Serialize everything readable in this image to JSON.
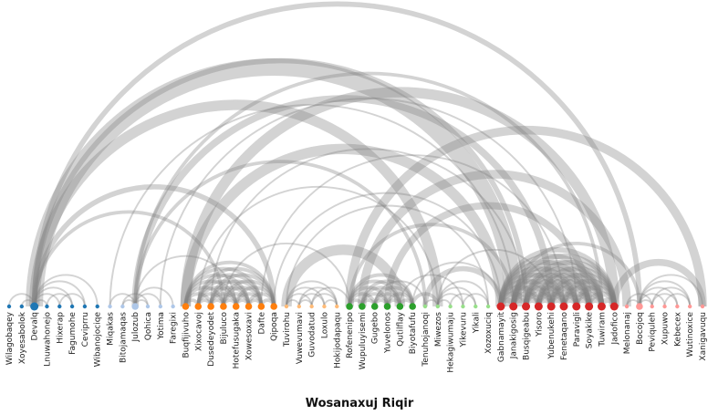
{
  "title": "Wosanaxuj Riqir",
  "colors": {
    "link": "#808080",
    "groups": [
      "#1f77b4",
      "#aec7e8",
      "#ff7f0e",
      "#ffbb78",
      "#2ca02c",
      "#98df8a",
      "#d62728",
      "#ff9896"
    ]
  },
  "nodes": [
    {
      "name": "Wilagobaqey",
      "group": 0,
      "size": 1
    },
    {
      "name": "Xoyesabolok",
      "group": 0,
      "size": 1
    },
    {
      "name": "Devalq",
      "group": 0,
      "size": 3
    },
    {
      "name": "Lnuwahonejo",
      "group": 0,
      "size": 1
    },
    {
      "name": "Hixerap",
      "group": 0,
      "size": 1
    },
    {
      "name": "Fagumohe",
      "group": 0,
      "size": 1
    },
    {
      "name": "Ceviprru",
      "group": 0,
      "size": 1
    },
    {
      "name": "Wibanojociqe",
      "group": 0,
      "size": 1
    },
    {
      "name": "Miqakas",
      "group": 1,
      "size": 1
    },
    {
      "name": "Bitojamaqas",
      "group": 1,
      "size": 1
    },
    {
      "name": "Julozub",
      "group": 1,
      "size": 2
    },
    {
      "name": "Qohica",
      "group": 1,
      "size": 1
    },
    {
      "name": "Yotima",
      "group": 1,
      "size": 1
    },
    {
      "name": "Faregixi",
      "group": 1,
      "size": 1
    },
    {
      "name": "Buqfijivuho",
      "group": 2,
      "size": 2
    },
    {
      "name": "Xixocavoj",
      "group": 2,
      "size": 2
    },
    {
      "name": "Dusedeyodet",
      "group": 2,
      "size": 2
    },
    {
      "name": "Bijuluco",
      "group": 2,
      "size": 2
    },
    {
      "name": "Hotefusugaka",
      "group": 2,
      "size": 2
    },
    {
      "name": "Xowesoxavi",
      "group": 2,
      "size": 2
    },
    {
      "name": "Dafte",
      "group": 2,
      "size": 2
    },
    {
      "name": "Qipoqa",
      "group": 2,
      "size": 2
    },
    {
      "name": "Tuvirohu",
      "group": 3,
      "size": 1
    },
    {
      "name": "Vuwevumavi",
      "group": 3,
      "size": 1
    },
    {
      "name": "Guvodatud",
      "group": 3,
      "size": 1
    },
    {
      "name": "Loxulo",
      "group": 3,
      "size": 1
    },
    {
      "name": "Hokijodapaqu",
      "group": 3,
      "size": 1
    },
    {
      "name": "Rofenenipo",
      "group": 4,
      "size": 2
    },
    {
      "name": "Wupuluyisemi",
      "group": 4,
      "size": 2
    },
    {
      "name": "Gugebo",
      "group": 4,
      "size": 2
    },
    {
      "name": "Yuvelonos",
      "group": 4,
      "size": 2
    },
    {
      "name": "Qutilflay",
      "group": 4,
      "size": 2
    },
    {
      "name": "Biyotafufu",
      "group": 4,
      "size": 2
    },
    {
      "name": "Tenuhojanoqi",
      "group": 5,
      "size": 1
    },
    {
      "name": "Miwezos",
      "group": 5,
      "size": 1
    },
    {
      "name": "Hekagiwumaju",
      "group": 5,
      "size": 1
    },
    {
      "name": "Yikevuru",
      "group": 5,
      "size": 1
    },
    {
      "name": "Yikali",
      "group": 5,
      "size": 1
    },
    {
      "name": "Xozoxuciq",
      "group": 5,
      "size": 1
    },
    {
      "name": "Gabnamayit",
      "group": 6,
      "size": 3
    },
    {
      "name": "Janakigosig",
      "group": 6,
      "size": 3
    },
    {
      "name": "Busqigeabu",
      "group": 6,
      "size": 3
    },
    {
      "name": "Yisoro",
      "group": 6,
      "size": 3
    },
    {
      "name": "Yubenukehi",
      "group": 6,
      "size": 3
    },
    {
      "name": "Fenetaqano",
      "group": 6,
      "size": 3
    },
    {
      "name": "Paravigli",
      "group": 6,
      "size": 3
    },
    {
      "name": "Soyakike",
      "group": 6,
      "size": 3
    },
    {
      "name": "Tuwiram",
      "group": 6,
      "size": 3
    },
    {
      "name": "Jadofico",
      "group": 6,
      "size": 3
    },
    {
      "name": "Melonanaj",
      "group": 7,
      "size": 1
    },
    {
      "name": "Bocojoq",
      "group": 7,
      "size": 2
    },
    {
      "name": "Peviquleh",
      "group": 7,
      "size": 1
    },
    {
      "name": "Xupuwo",
      "group": 7,
      "size": 1
    },
    {
      "name": "Kebecex",
      "group": 7,
      "size": 1
    },
    {
      "name": "Wutinoxice",
      "group": 7,
      "size": 1
    },
    {
      "name": "Xanigavuqu",
      "group": 7,
      "size": 1
    }
  ],
  "links": [
    [
      2,
      0,
      1
    ],
    [
      2,
      1,
      1
    ],
    [
      2,
      3,
      1
    ],
    [
      2,
      4,
      1
    ],
    [
      2,
      5,
      1
    ],
    [
      2,
      6,
      1
    ],
    [
      2,
      7,
      1
    ],
    [
      4,
      6,
      1
    ],
    [
      3,
      5,
      1
    ],
    [
      2,
      40,
      10
    ],
    [
      2,
      34,
      6
    ],
    [
      2,
      41,
      3
    ],
    [
      2,
      50,
      3
    ],
    [
      2,
      21,
      3
    ],
    [
      2,
      17,
      2
    ],
    [
      10,
      8,
      1
    ],
    [
      10,
      9,
      1
    ],
    [
      10,
      11,
      1
    ],
    [
      10,
      12,
      1
    ],
    [
      10,
      13,
      1
    ],
    [
      9,
      11,
      1
    ],
    [
      8,
      40,
      1
    ],
    [
      10,
      43,
      4
    ],
    [
      10,
      33,
      2
    ],
    [
      10,
      47,
      2
    ],
    [
      10,
      18,
      1
    ],
    [
      14,
      15,
      2
    ],
    [
      14,
      16,
      2
    ],
    [
      14,
      17,
      2
    ],
    [
      14,
      18,
      2
    ],
    [
      14,
      19,
      2
    ],
    [
      14,
      20,
      2
    ],
    [
      14,
      21,
      2
    ],
    [
      15,
      16,
      2
    ],
    [
      15,
      17,
      2
    ],
    [
      15,
      18,
      2
    ],
    [
      15,
      19,
      2
    ],
    [
      15,
      20,
      2
    ],
    [
      15,
      21,
      2
    ],
    [
      16,
      17,
      2
    ],
    [
      16,
      18,
      2
    ],
    [
      16,
      19,
      2
    ],
    [
      16,
      20,
      2
    ],
    [
      16,
      21,
      2
    ],
    [
      17,
      18,
      2
    ],
    [
      17,
      19,
      2
    ],
    [
      17,
      20,
      2
    ],
    [
      17,
      21,
      2
    ],
    [
      18,
      19,
      2
    ],
    [
      18,
      20,
      2
    ],
    [
      18,
      21,
      2
    ],
    [
      19,
      20,
      2
    ],
    [
      19,
      21,
      2
    ],
    [
      20,
      21,
      2
    ],
    [
      14,
      39,
      6
    ],
    [
      14,
      48,
      6
    ],
    [
      15,
      34,
      1
    ],
    [
      16,
      41,
      1
    ],
    [
      17,
      27,
      1
    ],
    [
      20,
      44,
      1
    ],
    [
      21,
      39,
      1
    ],
    [
      12,
      45,
      1
    ],
    [
      22,
      23,
      1
    ],
    [
      22,
      24,
      1
    ],
    [
      22,
      25,
      1
    ],
    [
      22,
      26,
      1
    ],
    [
      23,
      24,
      1
    ],
    [
      23,
      25,
      1
    ],
    [
      24,
      26,
      1
    ],
    [
      25,
      26,
      1
    ],
    [
      23,
      26,
      1
    ],
    [
      22,
      31,
      6
    ],
    [
      22,
      38,
      1
    ],
    [
      24,
      27,
      1
    ],
    [
      27,
      28,
      2
    ],
    [
      27,
      29,
      2
    ],
    [
      27,
      30,
      2
    ],
    [
      27,
      31,
      2
    ],
    [
      27,
      32,
      2
    ],
    [
      28,
      29,
      2
    ],
    [
      28,
      30,
      2
    ],
    [
      28,
      31,
      2
    ],
    [
      28,
      32,
      2
    ],
    [
      29,
      30,
      2
    ],
    [
      29,
      31,
      2
    ],
    [
      29,
      32,
      2
    ],
    [
      30,
      31,
      2
    ],
    [
      30,
      32,
      2
    ],
    [
      31,
      32,
      2
    ],
    [
      27,
      55,
      5
    ],
    [
      28,
      49,
      5
    ],
    [
      30,
      46,
      4
    ],
    [
      27,
      40,
      2
    ],
    [
      32,
      39,
      1
    ],
    [
      29,
      33,
      1
    ],
    [
      32,
      34,
      2
    ],
    [
      31,
      36,
      1
    ],
    [
      34,
      33,
      1
    ],
    [
      34,
      35,
      1
    ],
    [
      34,
      36,
      1
    ],
    [
      34,
      37,
      1
    ],
    [
      34,
      38,
      1
    ],
    [
      35,
      37,
      1
    ],
    [
      36,
      38,
      1
    ],
    [
      33,
      39,
      3
    ],
    [
      34,
      43,
      1
    ],
    [
      39,
      40,
      3
    ],
    [
      39,
      41,
      3
    ],
    [
      39,
      42,
      3
    ],
    [
      39,
      43,
      3
    ],
    [
      39,
      44,
      3
    ],
    [
      39,
      45,
      3
    ],
    [
      39,
      46,
      3
    ],
    [
      39,
      47,
      3
    ],
    [
      39,
      48,
      3
    ],
    [
      40,
      41,
      3
    ],
    [
      40,
      42,
      3
    ],
    [
      40,
      43,
      3
    ],
    [
      40,
      44,
      3
    ],
    [
      40,
      45,
      3
    ],
    [
      40,
      46,
      3
    ],
    [
      40,
      47,
      3
    ],
    [
      40,
      48,
      3
    ],
    [
      41,
      42,
      3
    ],
    [
      41,
      43,
      3
    ],
    [
      41,
      44,
      3
    ],
    [
      41,
      45,
      3
    ],
    [
      41,
      46,
      3
    ],
    [
      41,
      47,
      3
    ],
    [
      41,
      48,
      3
    ],
    [
      42,
      43,
      3
    ],
    [
      42,
      44,
      3
    ],
    [
      42,
      45,
      3
    ],
    [
      42,
      46,
      3
    ],
    [
      42,
      47,
      3
    ],
    [
      42,
      48,
      3
    ],
    [
      43,
      44,
      3
    ],
    [
      43,
      45,
      3
    ],
    [
      43,
      46,
      3
    ],
    [
      43,
      47,
      3
    ],
    [
      43,
      48,
      3
    ],
    [
      44,
      45,
      3
    ],
    [
      44,
      46,
      3
    ],
    [
      44,
      47,
      3
    ],
    [
      44,
      48,
      3
    ],
    [
      45,
      46,
      3
    ],
    [
      45,
      47,
      3
    ],
    [
      45,
      48,
      3
    ],
    [
      46,
      47,
      3
    ],
    [
      46,
      48,
      3
    ],
    [
      47,
      48,
      3
    ],
    [
      48,
      55,
      4
    ],
    [
      40,
      50,
      2
    ],
    [
      50,
      49,
      1
    ],
    [
      50,
      51,
      1
    ],
    [
      50,
      52,
      1
    ],
    [
      50,
      53,
      1
    ],
    [
      50,
      54,
      1
    ],
    [
      50,
      55,
      1
    ],
    [
      49,
      51,
      1
    ],
    [
      51,
      53,
      1
    ],
    [
      52,
      54,
      1
    ],
    [
      51,
      54,
      1
    ]
  ]
}
